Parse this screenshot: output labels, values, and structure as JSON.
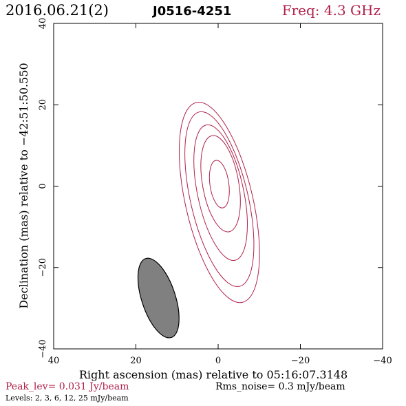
{
  "header": {
    "date": "2016.06.21(2)",
    "source": "J0516-4251",
    "freq": "Freq: 4.3 GHz"
  },
  "footer": {
    "peak": "Peak_lev=  0.031 Jy/beam",
    "rms": "Rms_noise=  0.3 mJy/beam",
    "levels": "Levels:   2,   3,   6,  12,  25 mJy/beam"
  },
  "colors": {
    "accent": "#b0204a",
    "beam_fill": "#808080",
    "axis": "#000000"
  },
  "chart_data": {
    "type": "contour",
    "xlabel": "Right ascension (mas) relative to 05:16:07.3148",
    "ylabel": "Declination (mas) relative to −42:51:50.550",
    "xlim": [
      40,
      -40
    ],
    "ylim": [
      -40,
      40
    ],
    "x_ticks": [
      "40",
      "20",
      "0",
      "−20",
      "−40"
    ],
    "y_ticks": [
      "−40",
      "−20",
      "0",
      "20",
      "40"
    ],
    "x_tick_values": [
      40,
      20,
      0,
      -20,
      -40
    ],
    "y_tick_values": [
      -40,
      -20,
      0,
      20,
      40
    ],
    "contour_levels_mJy": [
      2,
      3,
      6,
      12,
      25
    ],
    "contours": [
      {
        "level": 2,
        "center": [
          -0.3,
          -4.0
        ],
        "semi_major": 25.2,
        "semi_minor": 8.2,
        "pa_deg": 13
      },
      {
        "level": 3,
        "center": [
          -0.3,
          -3.2
        ],
        "semi_major": 22.0,
        "semi_minor": 7.0,
        "pa_deg": 13
      },
      {
        "level": 6,
        "center": [
          -0.6,
          -1.6
        ],
        "semi_major": 17.0,
        "semi_minor": 5.6,
        "pa_deg": 12
      },
      {
        "level": 12,
        "center": [
          -0.6,
          0.6
        ],
        "semi_major": 12.0,
        "semi_minor": 4.4,
        "pa_deg": 10
      },
      {
        "level": 25,
        "center": [
          -0.3,
          0.5
        ],
        "semi_major": 5.9,
        "semi_minor": 2.3,
        "pa_deg": 8
      }
    ],
    "beam": {
      "center": [
        14.5,
        -27.5
      ],
      "semi_major": 10.2,
      "semi_minor": 4.1,
      "pa_deg": 18
    }
  }
}
